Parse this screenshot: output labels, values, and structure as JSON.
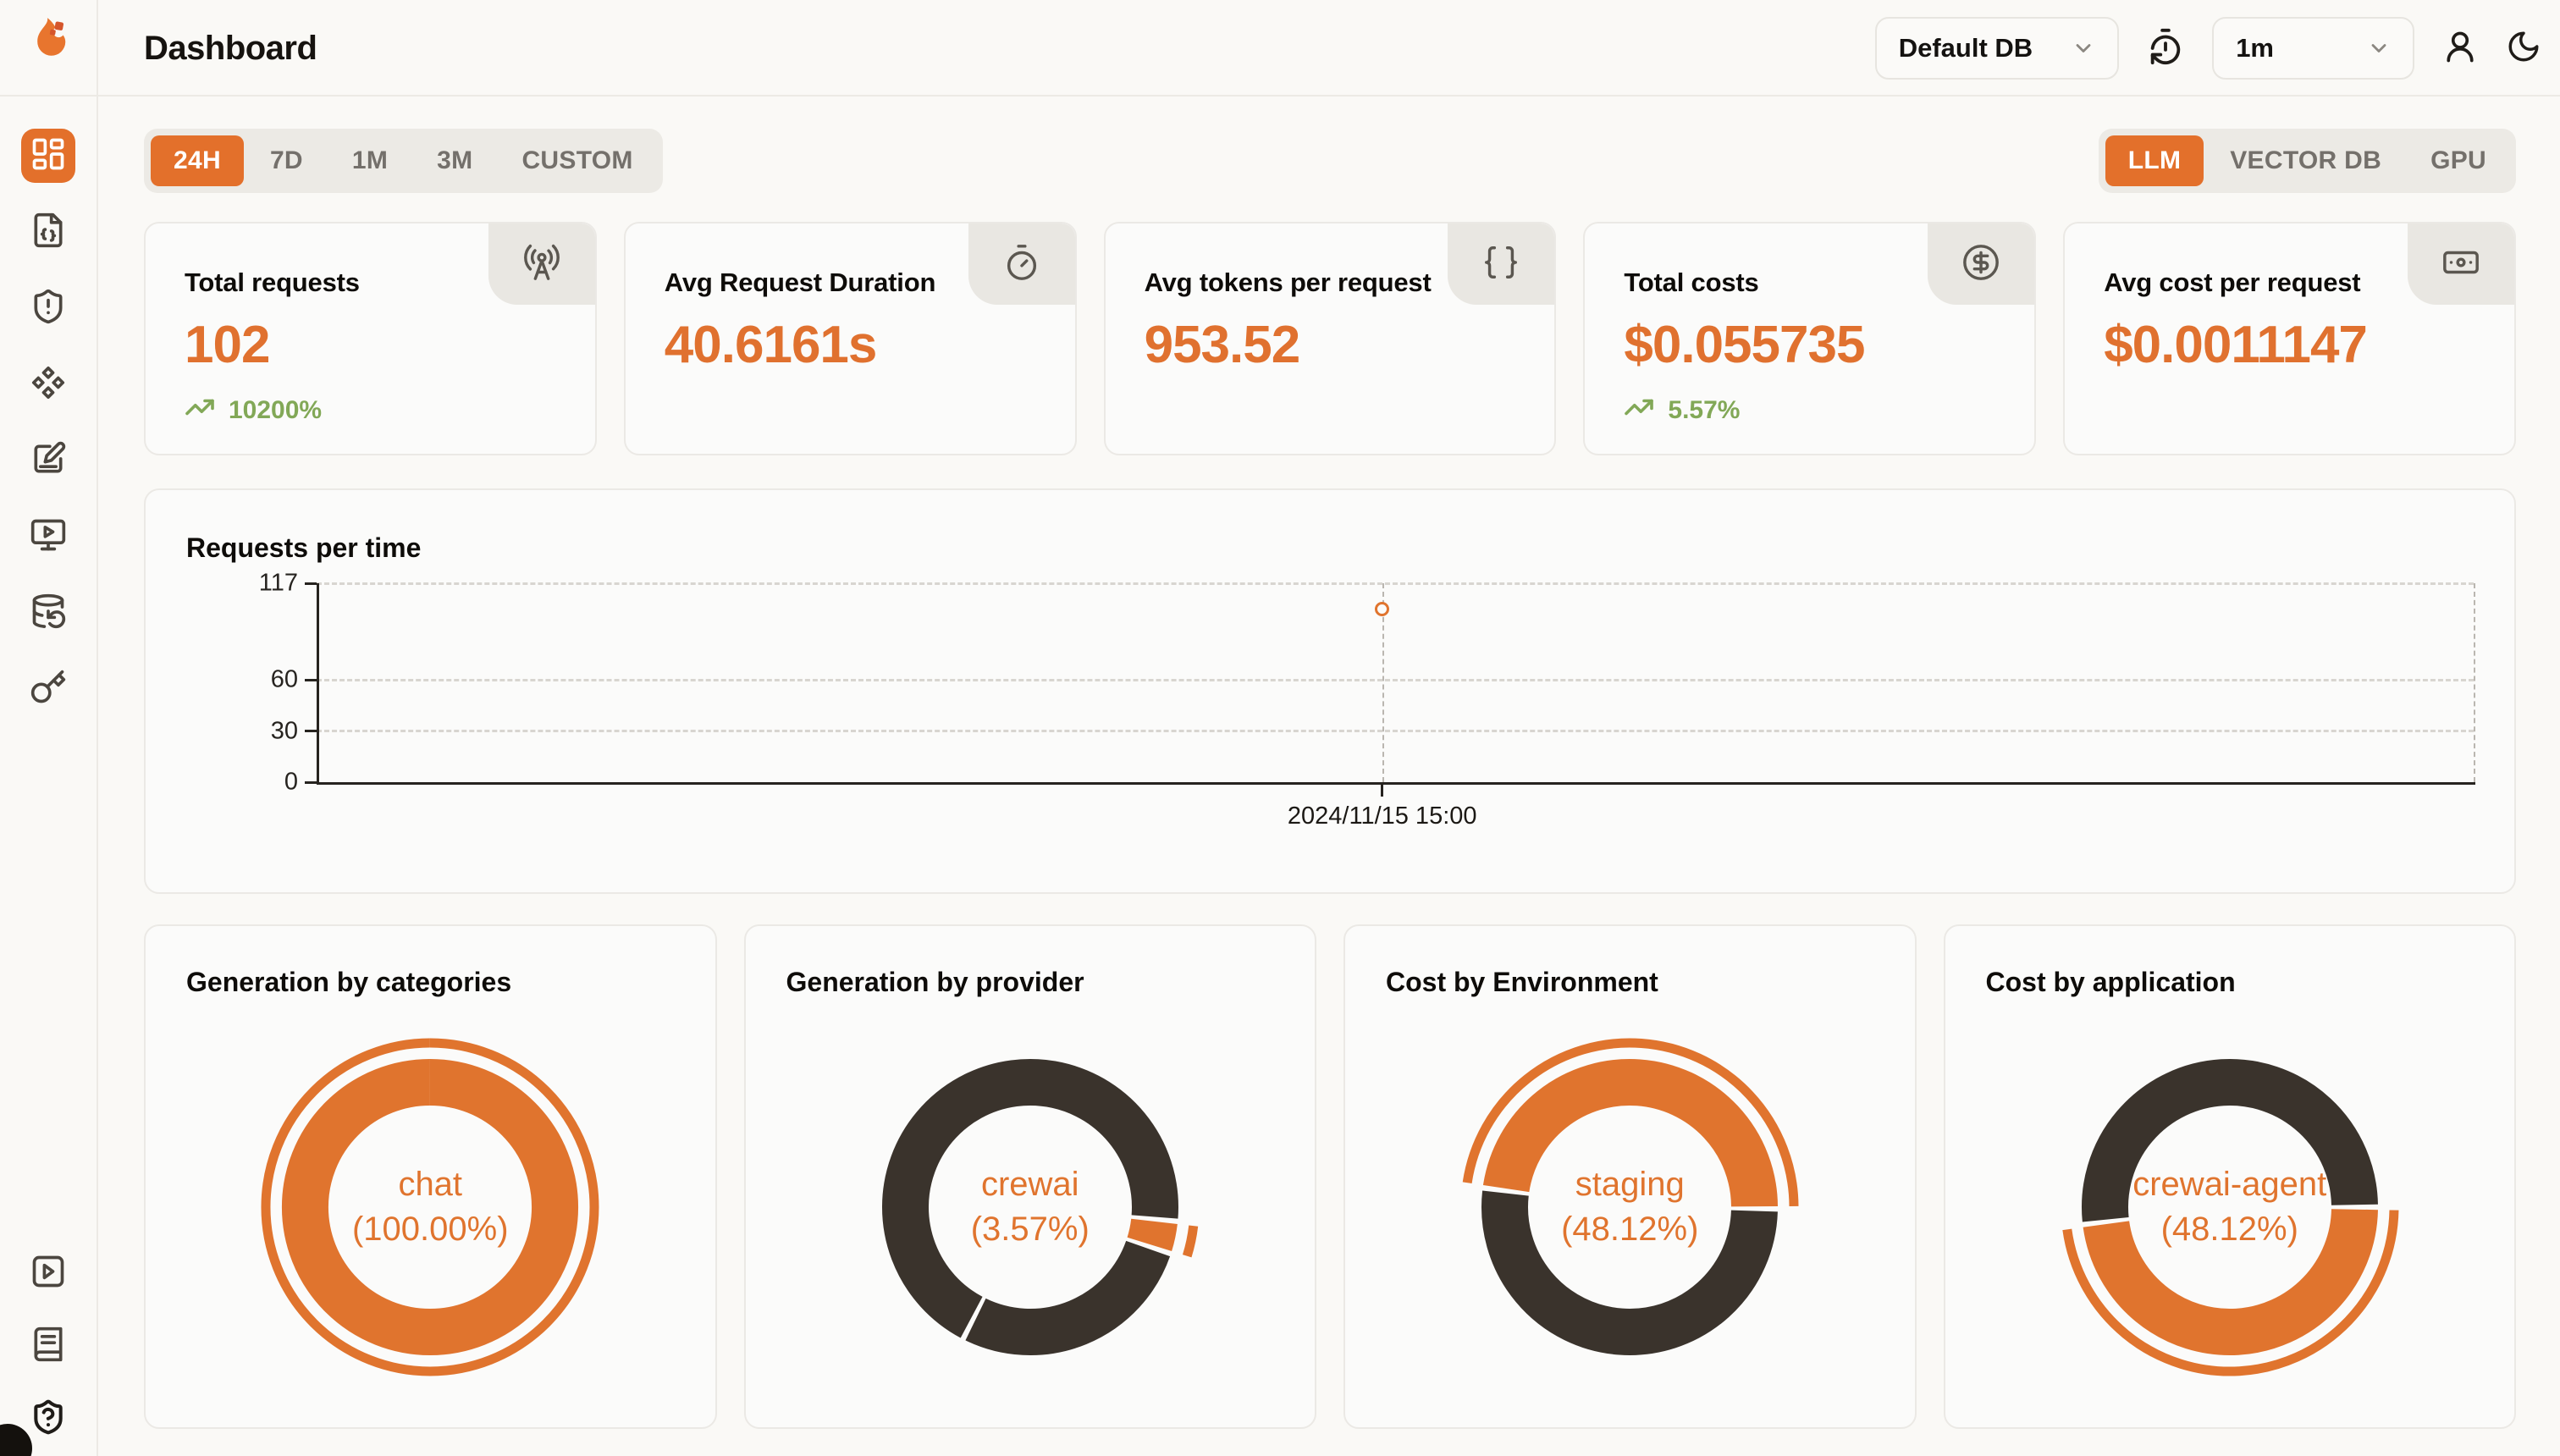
{
  "header": {
    "title": "Dashboard",
    "database_select": {
      "value": "Default DB"
    },
    "interval_select": {
      "value": "1m"
    }
  },
  "sidebar": {
    "items": [
      {
        "icon": "layout-dashboard-icon",
        "active": true
      },
      {
        "icon": "file-json-icon",
        "active": false
      },
      {
        "icon": "shield-alert-icon",
        "active": false
      },
      {
        "icon": "diamonds-icon",
        "active": false
      },
      {
        "icon": "notebook-pen-icon",
        "active": false
      },
      {
        "icon": "monitor-play-icon",
        "active": false
      },
      {
        "icon": "database-backup-icon",
        "active": false
      },
      {
        "icon": "key-icon",
        "active": false
      }
    ],
    "bottom_items": [
      {
        "icon": "square-play-icon"
      },
      {
        "icon": "book-icon"
      },
      {
        "icon": "shield-question-icon"
      }
    ]
  },
  "filters": {
    "time_ranges": [
      {
        "label": "24H",
        "active": true
      },
      {
        "label": "7D",
        "active": false
      },
      {
        "label": "1M",
        "active": false
      },
      {
        "label": "3M",
        "active": false
      },
      {
        "label": "CUSTOM",
        "active": false
      }
    ],
    "sources": [
      {
        "label": "LLM",
        "active": true
      },
      {
        "label": "VECTOR DB",
        "active": false
      },
      {
        "label": "GPU",
        "active": false
      }
    ]
  },
  "stats": [
    {
      "label": "Total requests",
      "value": "102",
      "trend": "10200%",
      "icon": "radio-tower-icon"
    },
    {
      "label": "Avg Request Duration",
      "value": "40.6161s",
      "icon": "timer-icon"
    },
    {
      "label": "Avg tokens per request",
      "value": "953.52",
      "icon": "braces-icon"
    },
    {
      "label": "Total costs",
      "value": "$0.055735",
      "trend": "5.57%",
      "icon": "circle-dollar-sign-icon"
    },
    {
      "label": "Avg cost per request",
      "value": "$0.0011147",
      "icon": "banknote-icon"
    }
  ],
  "colors": {
    "accent": "#E3702B",
    "chart_orange": "#E0742E",
    "chart_dark": "#3A332C",
    "positive": "#82A857"
  },
  "chart_data": [
    {
      "type": "line",
      "title": "Requests per time",
      "ylim": [
        0,
        117
      ],
      "yticks": [
        0,
        30,
        60,
        117
      ],
      "grid": "dashed-horizontal",
      "points": [
        {
          "x_label": "2024/11/15 15:00",
          "value": 102,
          "x_frac": 0.494
        }
      ]
    },
    {
      "type": "pie",
      "title": "Generation by categories",
      "center_name": "chat",
      "center_pct": "(100.00%)",
      "segments": [
        {
          "label": "chat",
          "pct": 100.0,
          "color": "accent",
          "start_deg": 0,
          "highlight": true
        }
      ]
    },
    {
      "type": "pie",
      "title": "Generation by provider",
      "center_name": "crewai",
      "center_pct": "(3.57%)",
      "segments": [
        {
          "label": "crewai",
          "pct": 3.57,
          "color": "accent",
          "start_deg": 95.5,
          "highlight": true
        },
        {
          "label": "",
          "pct": 27.4,
          "color": "dark",
          "start_deg": 108.35,
          "highlight": false
        },
        {
          "label": "",
          "pct": 69.03,
          "color": "dark",
          "start_deg": 207,
          "highlight": false
        }
      ]
    },
    {
      "type": "pie",
      "title": "Cost by Environment",
      "center_name": "staging",
      "center_pct": "(48.12%)",
      "segments": [
        {
          "label": "staging",
          "pct": 48.12,
          "color": "accent",
          "start_deg": 277.5,
          "highlight": true
        },
        {
          "label": "",
          "pct": 51.88,
          "color": "dark",
          "start_deg": 90.7,
          "highlight": false
        }
      ]
    },
    {
      "type": "pie",
      "title": "Cost by application",
      "center_name": "crewai-agent",
      "center_pct": "(48.12%)",
      "segments": [
        {
          "label": "crewai-agent",
          "pct": 48.12,
          "color": "accent",
          "start_deg": 90,
          "highlight": true
        },
        {
          "label": "",
          "pct": 51.88,
          "color": "dark",
          "start_deg": 263.2,
          "highlight": false
        }
      ]
    }
  ]
}
